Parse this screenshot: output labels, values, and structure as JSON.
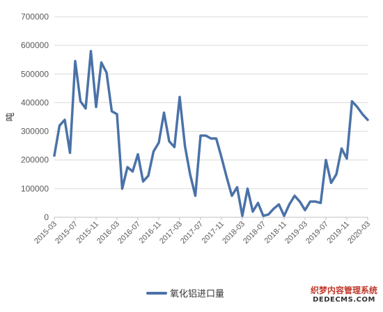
{
  "chart_data": {
    "type": "line",
    "title": "",
    "xlabel": "",
    "ylabel": "吨",
    "ylim": [
      0,
      700000
    ],
    "yticks": [
      0,
      100000,
      200000,
      300000,
      400000,
      500000,
      600000,
      700000
    ],
    "ytick_labels": [
      "0",
      "100000",
      "200000",
      "300000",
      "400000",
      "500000",
      "600000",
      "700000"
    ],
    "xtick_labels": [
      "2015-03",
      "2015-07",
      "2015-11",
      "2016-03",
      "2016-07",
      "2016-11",
      "2017-03",
      "2017-07",
      "2017-11",
      "2018-03",
      "2018-07",
      "2018-11",
      "2019-03",
      "2019-07",
      "2019-11",
      "2020-03"
    ],
    "grid": "horizontal",
    "legend_position": "bottom",
    "series": [
      {
        "name": "氧化铝进口量",
        "color": "#4a72a8",
        "x": [
          "2015-03",
          "2015-04",
          "2015-05",
          "2015-06",
          "2015-07",
          "2015-08",
          "2015-09",
          "2015-10",
          "2015-11",
          "2015-12",
          "2016-01",
          "2016-02",
          "2016-03",
          "2016-04",
          "2016-05",
          "2016-06",
          "2016-07",
          "2016-08",
          "2016-09",
          "2016-10",
          "2016-11",
          "2016-12",
          "2017-01",
          "2017-02",
          "2017-03",
          "2017-04",
          "2017-05",
          "2017-06",
          "2017-07",
          "2017-08",
          "2017-09",
          "2017-10",
          "2017-11",
          "2017-12",
          "2018-01",
          "2018-02",
          "2018-03",
          "2018-04",
          "2018-05",
          "2018-06",
          "2018-07",
          "2018-08",
          "2018-09",
          "2018-10",
          "2018-11",
          "2018-12",
          "2019-01",
          "2019-02",
          "2019-03",
          "2019-04",
          "2019-05",
          "2019-06",
          "2019-07",
          "2019-08",
          "2019-09",
          "2019-10",
          "2019-11",
          "2019-12",
          "2020-01",
          "2020-02",
          "2020-03"
        ],
        "values": [
          215000,
          320000,
          340000,
          225000,
          545000,
          405000,
          380000,
          580000,
          385000,
          540000,
          505000,
          370000,
          360000,
          100000,
          175000,
          160000,
          220000,
          125000,
          145000,
          230000,
          260000,
          365000,
          265000,
          245000,
          420000,
          250000,
          150000,
          75000,
          285000,
          285000,
          275000,
          275000,
          210000,
          140000,
          75000,
          105000,
          5000,
          100000,
          20000,
          50000,
          5000,
          10000,
          30000,
          45000,
          5000,
          45000,
          75000,
          55000,
          25000,
          55000,
          55000,
          50000,
          200000,
          120000,
          150000,
          240000,
          205000,
          405000,
          385000,
          360000,
          340000
        ]
      }
    ]
  },
  "watermark": {
    "line1": "织梦内容管理系统",
    "line2": "DEDECMS.COM"
  }
}
